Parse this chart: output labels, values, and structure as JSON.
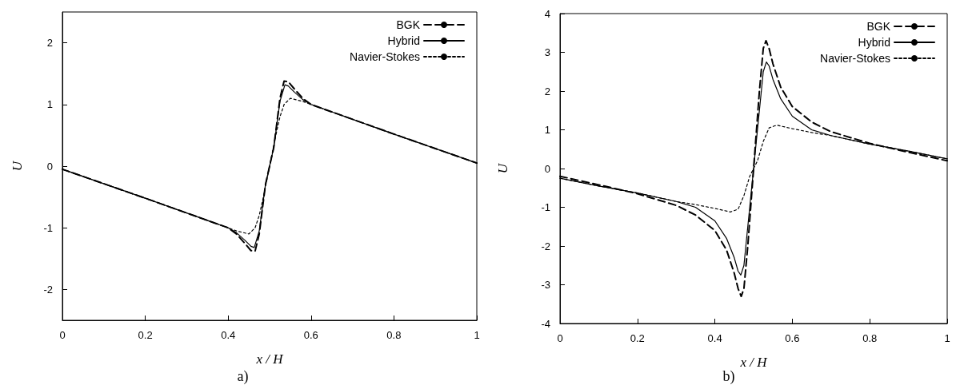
{
  "chart_data": [
    {
      "type": "line",
      "xlabel": "x / H",
      "ylabel": "U",
      "annotations": [
        "a)"
      ],
      "xlim": [
        0,
        1
      ],
      "xticks": [
        0,
        0.2,
        0.4,
        0.6,
        0.8,
        1
      ],
      "ylim": [
        -2.5,
        2.5
      ],
      "yticks": [
        -2,
        -1,
        0,
        1,
        2
      ],
      "grid": false,
      "legend": "top right",
      "marker": "none",
      "series": [
        {
          "name": "BGK",
          "color": "#000000",
          "line_style": "dashed",
          "x": [
            0,
            0.2,
            0.4,
            0.42,
            0.44,
            0.455,
            0.465,
            0.475,
            0.49,
            0.5,
            0.51,
            0.525,
            0.535,
            0.545,
            0.56,
            0.58,
            0.6,
            0.8,
            1
          ],
          "values": [
            -0.05,
            -0.52,
            -1.0,
            -1.1,
            -1.25,
            -1.37,
            -1.38,
            -1.1,
            -0.3,
            0,
            0.3,
            1.1,
            1.38,
            1.37,
            1.25,
            1.1,
            1.0,
            0.52,
            0.05
          ]
        },
        {
          "name": "Hybrid",
          "color": "#000000",
          "line_style": "solid",
          "x": [
            0,
            0.2,
            0.4,
            0.42,
            0.44,
            0.455,
            0.463,
            0.475,
            0.49,
            0.5,
            0.51,
            0.525,
            0.537,
            0.545,
            0.56,
            0.58,
            0.6,
            0.8,
            1
          ],
          "values": [
            -0.05,
            -0.52,
            -1.0,
            -1.08,
            -1.2,
            -1.3,
            -1.32,
            -1.05,
            -0.3,
            0,
            0.3,
            1.05,
            1.32,
            1.3,
            1.2,
            1.08,
            1.0,
            0.52,
            0.05
          ]
        },
        {
          "name": "Navier-Stokes",
          "color": "#000000",
          "line_style": "dotted",
          "x": [
            0,
            0.2,
            0.4,
            0.42,
            0.45,
            0.465,
            0.475,
            0.485,
            0.5,
            0.515,
            0.525,
            0.535,
            0.55,
            0.58,
            0.6,
            0.8,
            1
          ],
          "values": [
            -0.05,
            -0.52,
            -1.0,
            -1.05,
            -1.1,
            -1.0,
            -0.8,
            -0.5,
            0,
            0.5,
            0.8,
            1.0,
            1.1,
            1.05,
            1.0,
            0.52,
            0.05
          ]
        }
      ]
    },
    {
      "type": "line",
      "xlabel": "x / H",
      "ylabel": "U",
      "annotations": [
        "b)"
      ],
      "xlim": [
        0,
        1
      ],
      "xticks": [
        0,
        0.2,
        0.4,
        0.6,
        0.8,
        1
      ],
      "ylim": [
        -4,
        4
      ],
      "yticks": [
        -4,
        -3,
        -2,
        -1,
        0,
        1,
        2,
        3,
        4
      ],
      "grid": false,
      "legend": "top right",
      "marker": "none",
      "series": [
        {
          "name": "BGK",
          "color": "#000000",
          "line_style": "dashed",
          "x": [
            0,
            0.1,
            0.2,
            0.3,
            0.35,
            0.4,
            0.43,
            0.45,
            0.46,
            0.468,
            0.475,
            0.485,
            0.5,
            0.515,
            0.525,
            0.532,
            0.54,
            0.55,
            0.57,
            0.6,
            0.65,
            0.7,
            0.8,
            0.9,
            1
          ],
          "values": [
            -0.2,
            -0.42,
            -0.65,
            -0.95,
            -1.2,
            -1.6,
            -2.1,
            -2.7,
            -3.1,
            -3.3,
            -3.1,
            -2.0,
            0,
            2.0,
            3.1,
            3.3,
            3.1,
            2.7,
            2.1,
            1.6,
            1.2,
            0.95,
            0.65,
            0.42,
            0.2
          ]
        },
        {
          "name": "Hybrid",
          "color": "#000000",
          "line_style": "solid",
          "x": [
            0,
            0.1,
            0.2,
            0.3,
            0.35,
            0.4,
            0.43,
            0.45,
            0.46,
            0.467,
            0.475,
            0.485,
            0.5,
            0.515,
            0.525,
            0.533,
            0.54,
            0.55,
            0.57,
            0.6,
            0.65,
            0.7,
            0.8,
            0.9,
            1
          ],
          "values": [
            -0.25,
            -0.45,
            -0.63,
            -0.85,
            -1.0,
            -1.35,
            -1.8,
            -2.3,
            -2.65,
            -2.75,
            -2.5,
            -1.5,
            0,
            1.5,
            2.5,
            2.75,
            2.65,
            2.3,
            1.8,
            1.35,
            1.0,
            0.85,
            0.63,
            0.45,
            0.25
          ]
        },
        {
          "name": "Navier-Stokes",
          "color": "#000000",
          "line_style": "dotted",
          "x": [
            0,
            0.1,
            0.2,
            0.3,
            0.35,
            0.4,
            0.44,
            0.46,
            0.475,
            0.49,
            0.5,
            0.51,
            0.525,
            0.54,
            0.56,
            0.6,
            0.65,
            0.7,
            0.8,
            0.9,
            1
          ],
          "values": [
            -0.25,
            -0.45,
            -0.63,
            -0.85,
            -0.93,
            -1.03,
            -1.12,
            -1.05,
            -0.7,
            -0.2,
            0,
            0.2,
            0.7,
            1.05,
            1.12,
            1.03,
            0.93,
            0.85,
            0.63,
            0.45,
            0.25
          ]
        }
      ]
    }
  ]
}
